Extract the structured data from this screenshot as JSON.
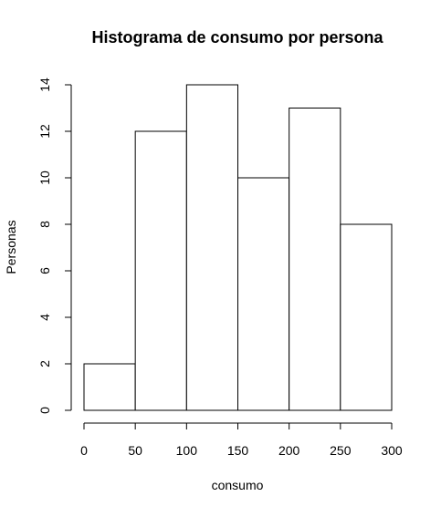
{
  "chart_data": {
    "type": "bar",
    "title": "Histograma de consumo por persona",
    "xlabel": "consumo",
    "ylabel": "Personas",
    "bins": [
      {
        "start": 0,
        "end": 50,
        "count": 2
      },
      {
        "start": 50,
        "end": 100,
        "count": 12
      },
      {
        "start": 100,
        "end": 150,
        "count": 14
      },
      {
        "start": 150,
        "end": 200,
        "count": 10
      },
      {
        "start": 200,
        "end": 250,
        "count": 13
      },
      {
        "start": 250,
        "end": 300,
        "count": 8
      }
    ],
    "xlim": [
      0,
      300
    ],
    "ylim": [
      0,
      14
    ],
    "xticks": [
      0,
      50,
      100,
      150,
      200,
      250,
      300
    ],
    "yticks": [
      0,
      2,
      4,
      6,
      8,
      10,
      12,
      14
    ],
    "grid": false,
    "legend": "none",
    "colors": {
      "bar_fill": "#ffffff",
      "bar_stroke": "#000000"
    }
  }
}
